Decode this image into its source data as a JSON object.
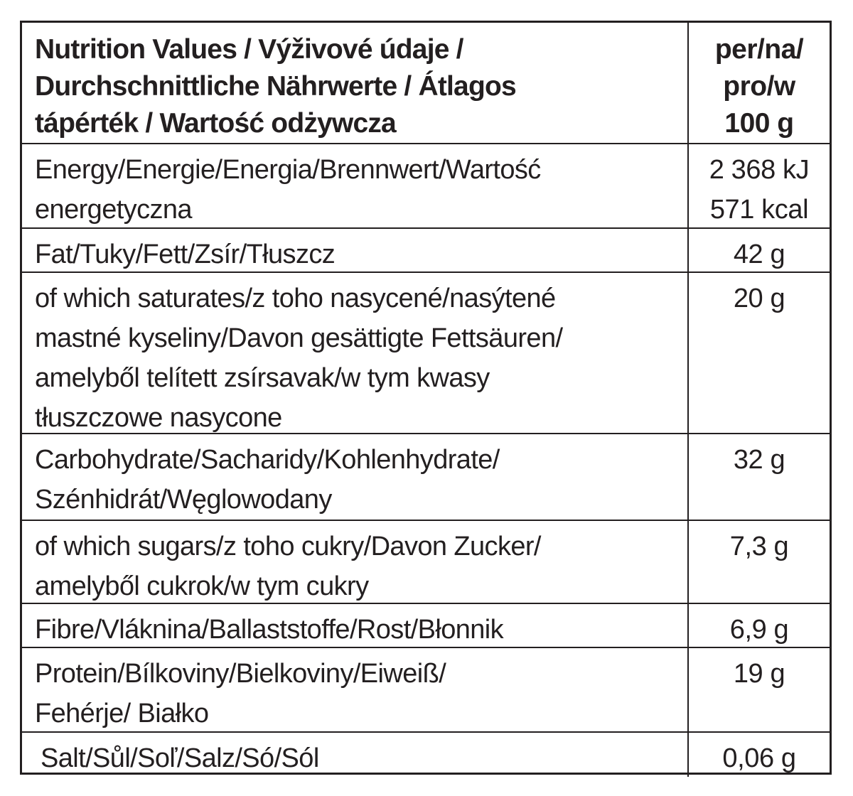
{
  "header": {
    "nutrient_label": "Nutrition Values / Výživové údaje /\nDurchschnittliche Nährwerte / Átlagos\ntápérték / Wartość odżywcza",
    "per_label": "per/na/\npro/w\n100 g"
  },
  "rows": [
    {
      "nutrient": "Energy/Energie/Energia/Brennwert/Wartość\nenergetyczna",
      "value": "2 368 kJ\n571 kcal"
    },
    {
      "nutrient": "Fat/Tuky/Fett/Zsír/Tłuszcz",
      "value": "42 g"
    },
    {
      "nutrient": "of which saturates/z toho nasycené/nasýtené\nmastné kyseliny/Davon gesättigte Fettsäuren/\namelyből telített zsírsavak/w tym kwasy\ntłuszczowe nasycone",
      "value": "20 g"
    },
    {
      "nutrient": "Carbohydrate/Sacharidy/Kohlenhydrate/\nSzénhidrát/Węglowodany",
      "value": "32 g"
    },
    {
      "nutrient": "of which sugars/z toho cukry/Davon Zucker/\namelyből cukrok/w tym cukry",
      "value": "7,3 g"
    },
    {
      "nutrient": "Fibre/Vláknina/Ballaststoffe/Rost/Błonnik",
      "value": "6,9 g"
    },
    {
      "nutrient": "Protein/Bílkoviny/Bielkoviny/Eiweiß/\nFehérje/ Białko",
      "value": "19 g"
    },
    {
      "nutrient": "Salt/Sůl/Soľ/Salz/Só/Sól",
      "value": "0,06 g"
    }
  ],
  "colors": {
    "text": "#231f20",
    "border": "#231f20",
    "background": "#ffffff"
  }
}
